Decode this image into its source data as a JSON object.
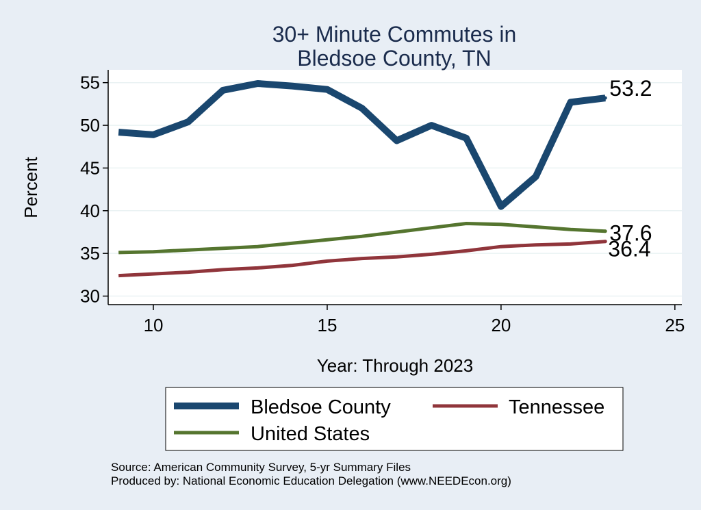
{
  "chart_data": {
    "type": "line",
    "title": [
      "30+ Minute Commutes in",
      "Bledsoe County, TN"
    ],
    "xlabel": "Year: Through 2023",
    "ylabel": "Percent",
    "xlim": [
      8.7,
      25.2
    ],
    "ylim": [
      29,
      56.5
    ],
    "xticks": [
      10,
      15,
      20,
      25
    ],
    "yticks": [
      30,
      35,
      40,
      45,
      50,
      55
    ],
    "grid": "horizontal",
    "legend_position": "bottom",
    "x": [
      9,
      10,
      11,
      12,
      13,
      14,
      15,
      16,
      17,
      18,
      19,
      20,
      21,
      22,
      23
    ],
    "series": [
      {
        "name": "Bledsoe County",
        "color": "#1a476f",
        "values": [
          49.2,
          48.9,
          50.4,
          54.1,
          54.9,
          54.6,
          54.2,
          52.0,
          48.2,
          50.0,
          48.5,
          40.5,
          44.0,
          52.7,
          53.2
        ],
        "end_label": "53.2"
      },
      {
        "name": "Tennessee",
        "color": "#90353b",
        "values": [
          32.4,
          32.6,
          32.8,
          33.1,
          33.3,
          33.6,
          34.1,
          34.4,
          34.6,
          34.9,
          35.3,
          35.8,
          36.0,
          36.1,
          36.4
        ],
        "end_label": "36.4"
      },
      {
        "name": "United States",
        "color": "#55752f",
        "values": [
          35.1,
          35.2,
          35.4,
          35.6,
          35.8,
          36.2,
          36.6,
          37.0,
          37.5,
          38.0,
          38.5,
          38.4,
          38.1,
          37.8,
          37.6
        ],
        "end_label": "37.6"
      }
    ],
    "source_lines": [
      "Source: American Community Survey, 5-yr Summary Files",
      "Produced by: National Economic Education Delegation (www.NEEDEcon.org)"
    ]
  }
}
